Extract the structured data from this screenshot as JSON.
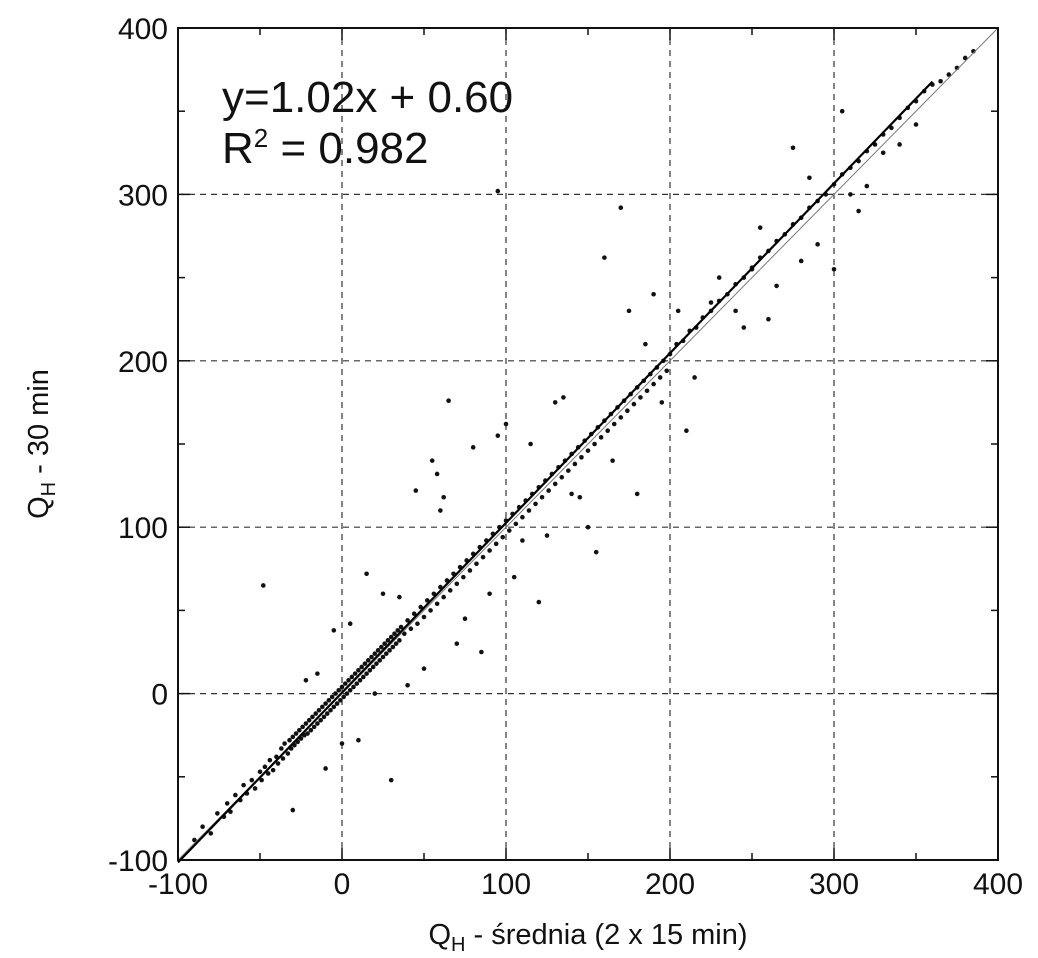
{
  "chart_data": {
    "type": "scatter",
    "xlabel": {
      "main": "Q",
      "sub": "H",
      "rest": " - średnia (2 x 15 min)"
    },
    "ylabel": {
      "main": "Q",
      "sub": "H",
      "rest": "  - 30 min"
    },
    "xlim": [
      -100,
      400
    ],
    "ylim": [
      -100,
      400
    ],
    "xticks": [
      -100,
      0,
      100,
      200,
      300,
      400
    ],
    "yticks": [
      -100,
      0,
      100,
      200,
      300,
      400
    ],
    "x_tick_labels": [
      "-100",
      "0",
      "100",
      "200",
      "300",
      "400"
    ],
    "y_tick_labels": [
      "-100",
      "0",
      "100",
      "200",
      "300",
      "400"
    ],
    "grid": true,
    "grid_style": "dashed",
    "annotations": [
      {
        "text": "y=1.02x + 0.60"
      },
      {
        "text_main": "R",
        "text_sup": "2",
        "text_rest": " = 0.982"
      }
    ],
    "regression": {
      "slope": 1.02,
      "intercept": 0.6,
      "x_range": [
        -100,
        360
      ]
    },
    "identity_line": {
      "x_range": [
        -100,
        400
      ]
    },
    "point_color": "#111111",
    "points": [
      [
        -90,
        -88
      ],
      [
        -85,
        -80
      ],
      [
        -80,
        -84
      ],
      [
        -76,
        -72
      ],
      [
        -72,
        -74
      ],
      [
        -70,
        -66
      ],
      [
        -68,
        -71
      ],
      [
        -65,
        -61
      ],
      [
        -62,
        -64
      ],
      [
        -60,
        -55
      ],
      [
        -58,
        -60
      ],
      [
        -55,
        -52
      ],
      [
        -53,
        -57
      ],
      [
        -50,
        -47
      ],
      [
        -49,
        -52
      ],
      [
        -47,
        -44
      ],
      [
        -45,
        -48
      ],
      [
        -44,
        -40
      ],
      [
        -42,
        -46
      ],
      [
        -40,
        -38
      ],
      [
        -39,
        -42
      ],
      [
        -37,
        -33
      ],
      [
        -36,
        -39
      ],
      [
        -35,
        -30
      ],
      [
        -33,
        -36
      ],
      [
        -32,
        -28
      ],
      [
        -31,
        -33
      ],
      [
        -30,
        -26
      ],
      [
        -29,
        -31
      ],
      [
        -28,
        -24
      ],
      [
        -27,
        -29
      ],
      [
        -26,
        -22
      ],
      [
        -25,
        -27
      ],
      [
        -24,
        -20
      ],
      [
        -23,
        -25
      ],
      [
        -22,
        -18
      ],
      [
        -21,
        -24
      ],
      [
        -20,
        -16
      ],
      [
        -19,
        -22
      ],
      [
        -18,
        -14
      ],
      [
        -17,
        -20
      ],
      [
        -16,
        -12
      ],
      [
        -15,
        -18
      ],
      [
        -14,
        -10
      ],
      [
        -13,
        -16
      ],
      [
        -12,
        -8
      ],
      [
        -11,
        -14
      ],
      [
        -10,
        -6
      ],
      [
        -9,
        -12
      ],
      [
        -8,
        -4
      ],
      [
        -7,
        -10
      ],
      [
        -6,
        -2
      ],
      [
        -5,
        -8
      ],
      [
        -4,
        0
      ],
      [
        -3,
        -6
      ],
      [
        -2,
        2
      ],
      [
        -1,
        -4
      ],
      [
        0,
        4
      ],
      [
        1,
        -2
      ],
      [
        2,
        6
      ],
      [
        3,
        0
      ],
      [
        4,
        8
      ],
      [
        5,
        2
      ],
      [
        6,
        10
      ],
      [
        7,
        4
      ],
      [
        8,
        12
      ],
      [
        9,
        6
      ],
      [
        10,
        14
      ],
      [
        11,
        8
      ],
      [
        12,
        16
      ],
      [
        13,
        10
      ],
      [
        14,
        18
      ],
      [
        15,
        12
      ],
      [
        16,
        20
      ],
      [
        17,
        14
      ],
      [
        18,
        22
      ],
      [
        19,
        16
      ],
      [
        20,
        24
      ],
      [
        21,
        18
      ],
      [
        22,
        26
      ],
      [
        23,
        20
      ],
      [
        24,
        28
      ],
      [
        25,
        22
      ],
      [
        26,
        30
      ],
      [
        27,
        24
      ],
      [
        28,
        32
      ],
      [
        29,
        26
      ],
      [
        30,
        34
      ],
      [
        31,
        28
      ],
      [
        32,
        36
      ],
      [
        33,
        30
      ],
      [
        34,
        38
      ],
      [
        35,
        32
      ],
      [
        36,
        40
      ],
      [
        38,
        36
      ],
      [
        40,
        44
      ],
      [
        42,
        39
      ],
      [
        44,
        48
      ],
      [
        46,
        42
      ],
      [
        48,
        52
      ],
      [
        50,
        46
      ],
      [
        52,
        56
      ],
      [
        54,
        50
      ],
      [
        56,
        60
      ],
      [
        58,
        54
      ],
      [
        60,
        64
      ],
      [
        62,
        58
      ],
      [
        64,
        68
      ],
      [
        66,
        62
      ],
      [
        68,
        72
      ],
      [
        70,
        66
      ],
      [
        72,
        76
      ],
      [
        74,
        70
      ],
      [
        76,
        80
      ],
      [
        78,
        74
      ],
      [
        80,
        84
      ],
      [
        82,
        78
      ],
      [
        84,
        88
      ],
      [
        86,
        82
      ],
      [
        88,
        92
      ],
      [
        90,
        86
      ],
      [
        92,
        96
      ],
      [
        94,
        90
      ],
      [
        96,
        100
      ],
      [
        98,
        94
      ],
      [
        100,
        104
      ],
      [
        102,
        98
      ],
      [
        104,
        108
      ],
      [
        106,
        102
      ],
      [
        108,
        112
      ],
      [
        110,
        106
      ],
      [
        112,
        116
      ],
      [
        114,
        110
      ],
      [
        116,
        120
      ],
      [
        118,
        114
      ],
      [
        120,
        124
      ],
      [
        122,
        118
      ],
      [
        124,
        128
      ],
      [
        126,
        122
      ],
      [
        128,
        132
      ],
      [
        130,
        126
      ],
      [
        132,
        136
      ],
      [
        134,
        130
      ],
      [
        136,
        140
      ],
      [
        138,
        134
      ],
      [
        140,
        144
      ],
      [
        142,
        138
      ],
      [
        144,
        148
      ],
      [
        146,
        142
      ],
      [
        148,
        152
      ],
      [
        150,
        146
      ],
      [
        152,
        156
      ],
      [
        154,
        150
      ],
      [
        156,
        160
      ],
      [
        158,
        154
      ],
      [
        160,
        164
      ],
      [
        162,
        158
      ],
      [
        164,
        168
      ],
      [
        166,
        162
      ],
      [
        168,
        172
      ],
      [
        170,
        166
      ],
      [
        172,
        176
      ],
      [
        174,
        170
      ],
      [
        176,
        180
      ],
      [
        178,
        174
      ],
      [
        180,
        184
      ],
      [
        182,
        178
      ],
      [
        184,
        188
      ],
      [
        186,
        182
      ],
      [
        188,
        192
      ],
      [
        190,
        186
      ],
      [
        192,
        196
      ],
      [
        194,
        190
      ],
      [
        196,
        200
      ],
      [
        198,
        194
      ],
      [
        200,
        204
      ],
      [
        204,
        210
      ],
      [
        208,
        212
      ],
      [
        212,
        218
      ],
      [
        216,
        220
      ],
      [
        220,
        226
      ],
      [
        225,
        230
      ],
      [
        230,
        236
      ],
      [
        235,
        240
      ],
      [
        240,
        246
      ],
      [
        245,
        250
      ],
      [
        250,
        256
      ],
      [
        255,
        262
      ],
      [
        260,
        266
      ],
      [
        265,
        272
      ],
      [
        270,
        276
      ],
      [
        275,
        282
      ],
      [
        280,
        286
      ],
      [
        285,
        292
      ],
      [
        290,
        296
      ],
      [
        295,
        300
      ],
      [
        300,
        306
      ],
      [
        305,
        312
      ],
      [
        310,
        316
      ],
      [
        315,
        320
      ],
      [
        320,
        326
      ],
      [
        325,
        330
      ],
      [
        330,
        336
      ],
      [
        335,
        340
      ],
      [
        340,
        346
      ],
      [
        345,
        352
      ],
      [
        350,
        356
      ],
      [
        355,
        362
      ],
      [
        360,
        366
      ],
      [
        365,
        368
      ],
      [
        370,
        372
      ],
      [
        375,
        376
      ],
      [
        380,
        382
      ],
      [
        385,
        386
      ],
      [
        -15,
        12
      ],
      [
        -48,
        65
      ],
      [
        -22,
        8
      ],
      [
        -5,
        38
      ],
      [
        10,
        -28
      ],
      [
        15,
        72
      ],
      [
        30,
        -52
      ],
      [
        35,
        58
      ],
      [
        40,
        5
      ],
      [
        45,
        122
      ],
      [
        55,
        140
      ],
      [
        58,
        132
      ],
      [
        62,
        118
      ],
      [
        65,
        176
      ],
      [
        75,
        45
      ],
      [
        80,
        148
      ],
      [
        85,
        25
      ],
      [
        95,
        155
      ],
      [
        100,
        162
      ],
      [
        105,
        70
      ],
      [
        110,
        92
      ],
      [
        120,
        55
      ],
      [
        130,
        175
      ],
      [
        140,
        120
      ],
      [
        150,
        100
      ],
      [
        155,
        85
      ],
      [
        160,
        262
      ],
      [
        170,
        292
      ],
      [
        175,
        230
      ],
      [
        180,
        120
      ],
      [
        190,
        240
      ],
      [
        210,
        158
      ],
      [
        225,
        235
      ],
      [
        240,
        230
      ],
      [
        250,
        255
      ],
      [
        260,
        225
      ],
      [
        275,
        328
      ],
      [
        280,
        260
      ],
      [
        300,
        255
      ],
      [
        305,
        350
      ],
      [
        310,
        300
      ],
      [
        320,
        305
      ],
      [
        330,
        325
      ],
      [
        95,
        302
      ],
      [
        -30,
        -70
      ],
      [
        -10,
        -45
      ],
      [
        0,
        -30
      ],
      [
        5,
        42
      ],
      [
        20,
        0
      ],
      [
        25,
        60
      ],
      [
        50,
        15
      ],
      [
        60,
        110
      ],
      [
        70,
        30
      ],
      [
        90,
        60
      ],
      [
        115,
        150
      ],
      [
        125,
        95
      ],
      [
        135,
        178
      ],
      [
        145,
        118
      ],
      [
        165,
        140
      ],
      [
        185,
        210
      ],
      [
        195,
        175
      ],
      [
        205,
        230
      ],
      [
        215,
        190
      ],
      [
        230,
        250
      ],
      [
        245,
        220
      ],
      [
        255,
        280
      ],
      [
        265,
        245
      ],
      [
        285,
        310
      ],
      [
        290,
        270
      ],
      [
        315,
        290
      ],
      [
        340,
        330
      ],
      [
        350,
        342
      ]
    ]
  }
}
